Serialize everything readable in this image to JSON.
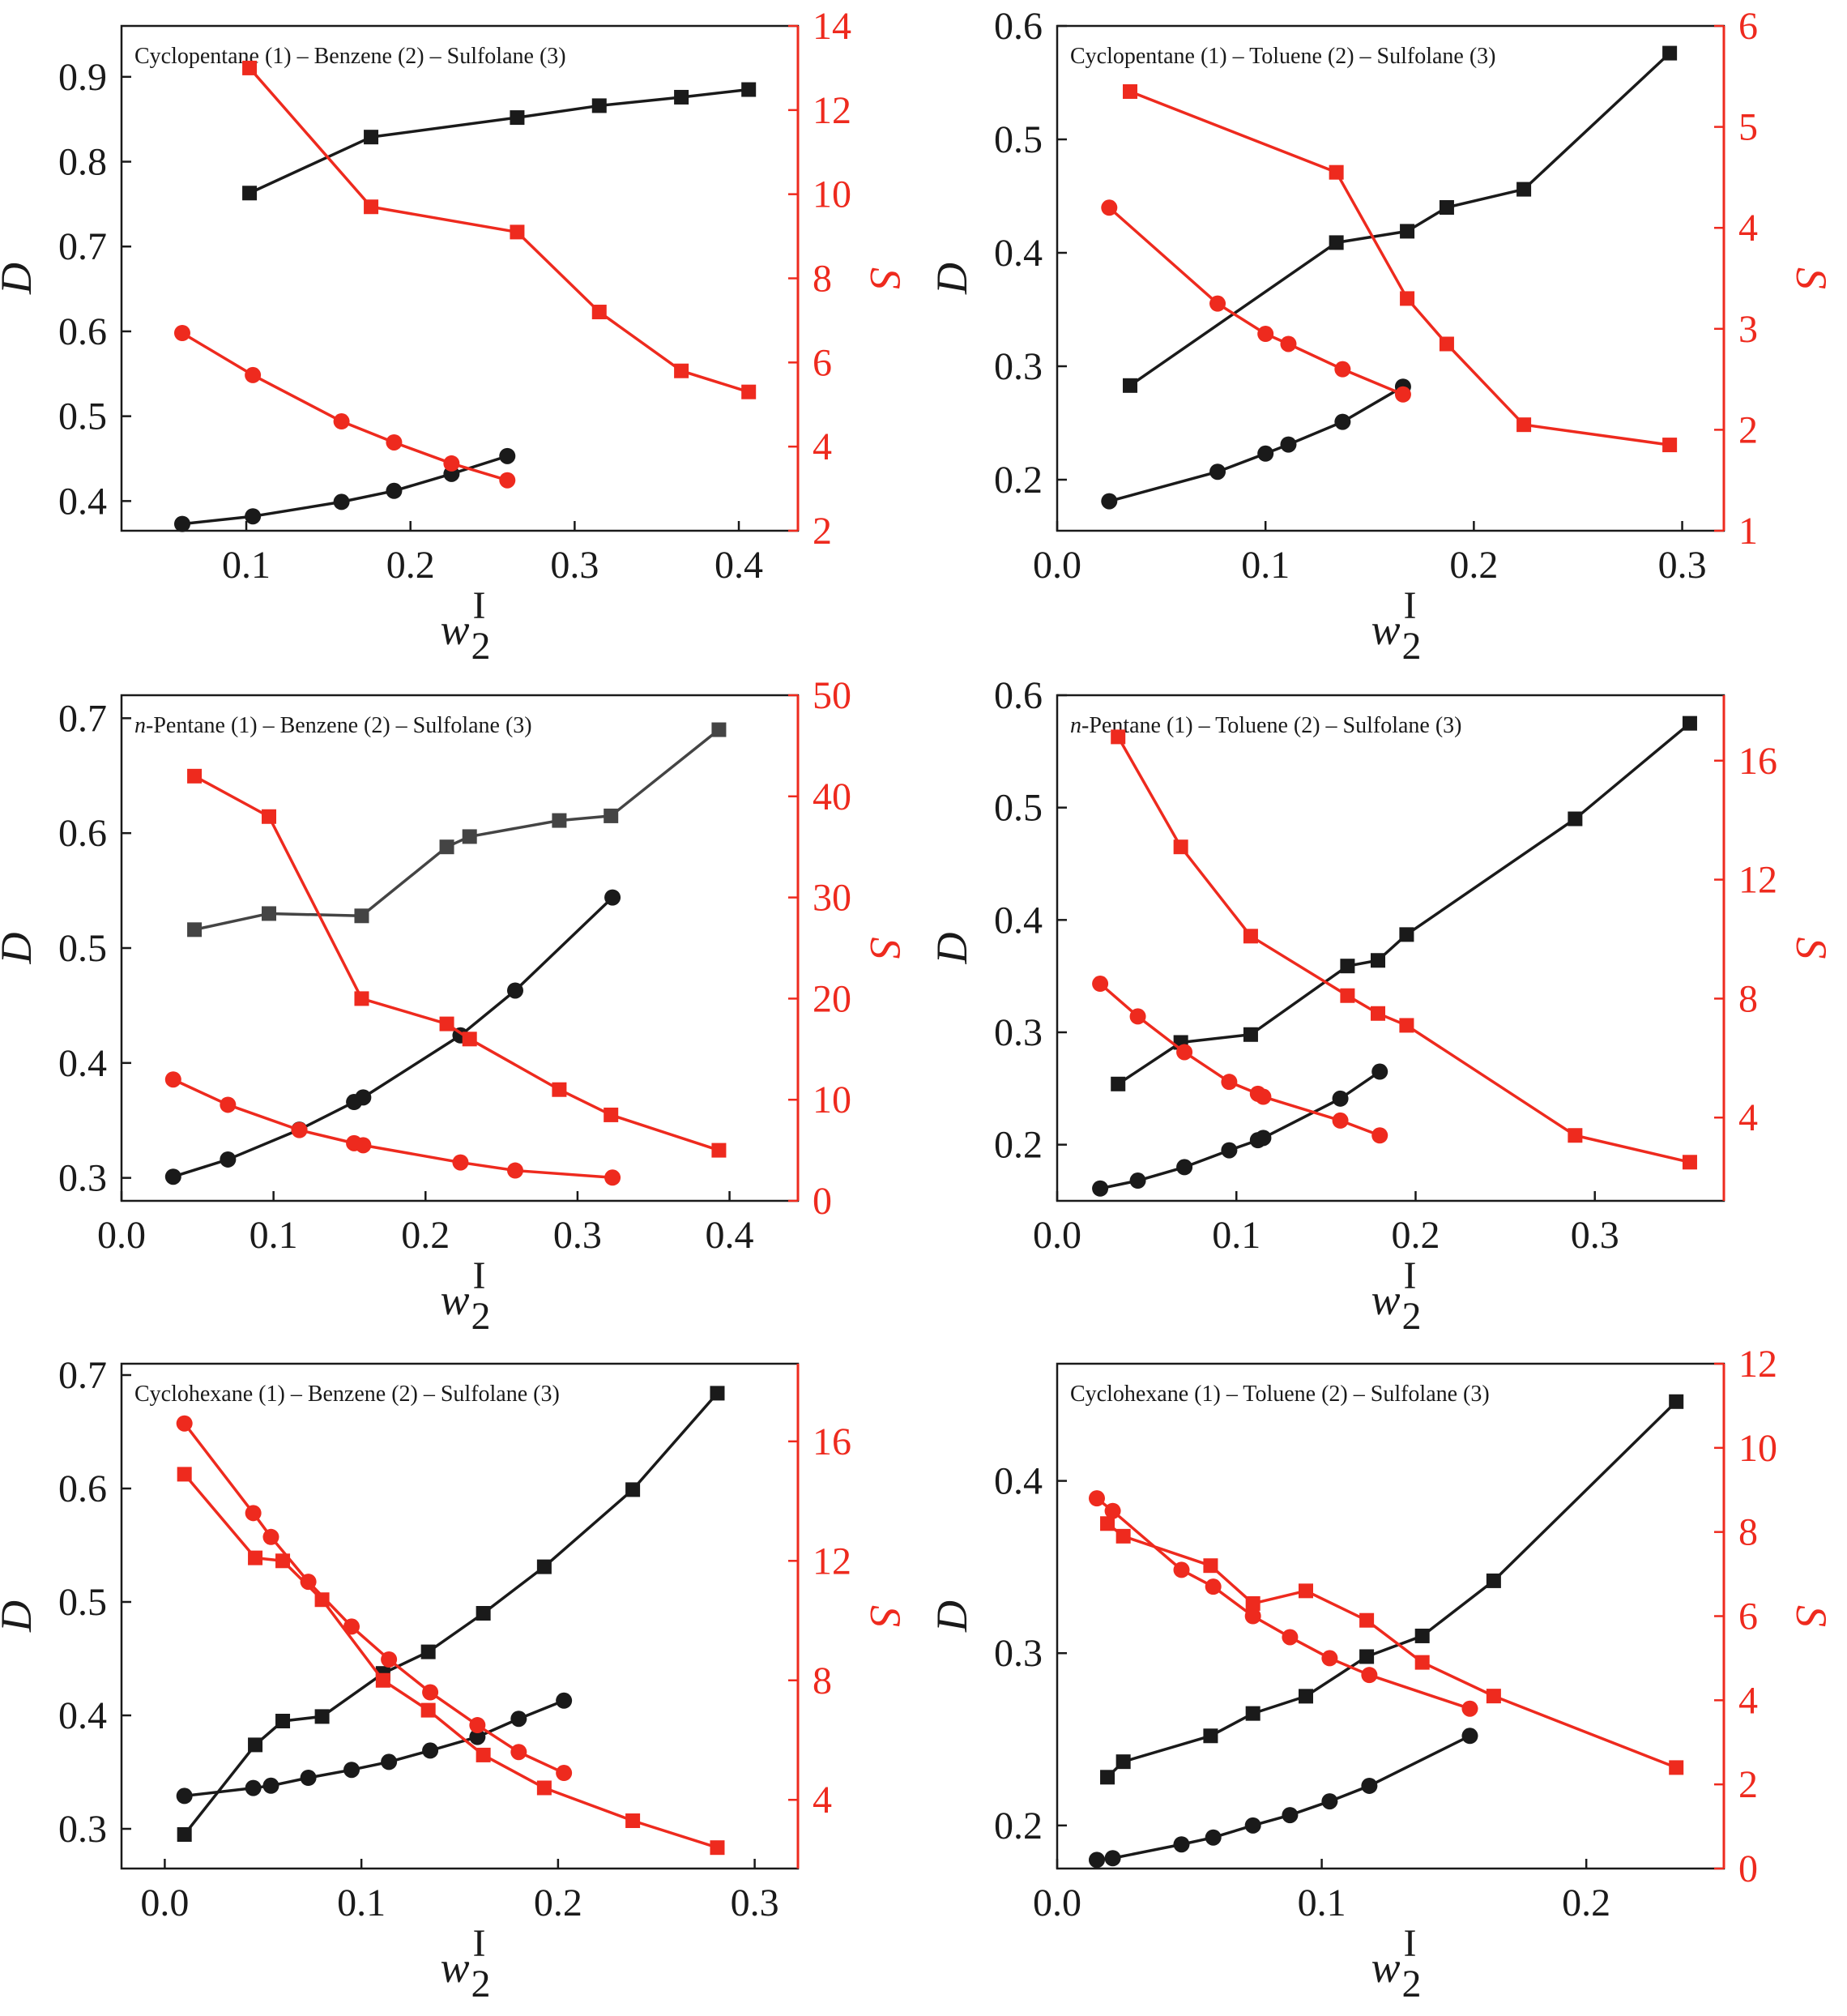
{
  "colors": {
    "black": "#1a1a1a",
    "red": "#ee2a1e",
    "grey": "#444444"
  },
  "chart_data": [
    {
      "type": "line",
      "title": "Cyclopentane (1) – Benzene (2) – Sulfolane (3)",
      "title_parts": [
        "Cyclopentane (1) – Benzene (2) – Sulfolane (3)"
      ],
      "xlabel": "w",
      "xlabel_sub": "2",
      "xlabel_sup": "I",
      "ylabel_left": "D",
      "ylabel_right": "S",
      "xlim": [
        0.024,
        0.436
      ],
      "ylim_left": [
        0.365,
        0.96
      ],
      "ylim_right": [
        2,
        14
      ],
      "xticks": [
        0.1,
        0.2,
        0.3,
        0.4
      ],
      "xtick_labels": [
        "0.1",
        "0.2",
        "0.3",
        "0.4"
      ],
      "yticks_left": [
        0.4,
        0.5,
        0.6,
        0.7,
        0.8,
        0.9
      ],
      "ytick_labels_left": [
        "0.4",
        "0.5",
        "0.6",
        "0.7",
        "0.8",
        "0.9"
      ],
      "yticks_right": [
        2,
        4,
        6,
        8,
        10,
        12,
        14
      ],
      "ytick_labels_right": [
        "2",
        "4",
        "6",
        "8",
        "10",
        "12",
        "14"
      ],
      "series": [
        {
          "name": "D squares",
          "axis": "left",
          "marker": "square",
          "color": "#1a1a1a",
          "x": [
            0.102,
            0.176,
            0.265,
            0.315,
            0.365,
            0.406
          ],
          "y": [
            0.763,
            0.829,
            0.852,
            0.866,
            0.876,
            0.885
          ]
        },
        {
          "name": "D circles",
          "axis": "left",
          "marker": "circle",
          "color": "#1a1a1a",
          "x": [
            0.061,
            0.104,
            0.158,
            0.19,
            0.225,
            0.259
          ],
          "y": [
            0.373,
            0.382,
            0.399,
            0.412,
            0.432,
            0.453
          ]
        },
        {
          "name": "S squares",
          "axis": "right",
          "marker": "square",
          "color": "#ee2a1e",
          "x": [
            0.102,
            0.176,
            0.265,
            0.315,
            0.365,
            0.406
          ],
          "y": [
            13.0,
            9.7,
            9.1,
            7.2,
            5.8,
            5.3
          ]
        },
        {
          "name": "S circles",
          "axis": "right",
          "marker": "circle",
          "color": "#ee2a1e",
          "x": [
            0.061,
            0.104,
            0.158,
            0.19,
            0.225,
            0.259
          ],
          "y": [
            6.7,
            5.7,
            4.6,
            4.1,
            3.6,
            3.2
          ]
        }
      ]
    },
    {
      "type": "line",
      "title": "Cyclopentane (1) – Toluene (2) – Sulfolane (3)",
      "title_parts": [
        "Cyclopentane (1) – Toluene (2) – Sulfolane (3)"
      ],
      "xlabel": "w",
      "xlabel_sub": "2",
      "xlabel_sup": "I",
      "ylabel_left": "D",
      "ylabel_right": "S",
      "xlim": [
        0.0,
        0.32
      ],
      "ylim_left": [
        0.155,
        0.6
      ],
      "ylim_right": [
        1,
        6
      ],
      "xticks": [
        0.0,
        0.1,
        0.2,
        0.3
      ],
      "xtick_labels": [
        "0.0",
        "0.1",
        "0.2",
        "0.3"
      ],
      "yticks_left": [
        0.2,
        0.3,
        0.4,
        0.5,
        0.6
      ],
      "ytick_labels_left": [
        "0.2",
        "0.3",
        "0.4",
        "0.5",
        "0.6"
      ],
      "yticks_right": [
        1,
        2,
        3,
        4,
        5,
        6
      ],
      "ytick_labels_right": [
        "1",
        "2",
        "3",
        "4",
        "5",
        "6"
      ],
      "series": [
        {
          "name": "D squares",
          "axis": "left",
          "marker": "square",
          "color": "#1a1a1a",
          "x": [
            0.035,
            0.134,
            0.168,
            0.187,
            0.224,
            0.294
          ],
          "y": [
            0.283,
            0.409,
            0.419,
            0.44,
            0.456,
            0.576
          ]
        },
        {
          "name": "D circles",
          "axis": "left",
          "marker": "circle",
          "color": "#1a1a1a",
          "x": [
            0.025,
            0.077,
            0.1,
            0.111,
            0.137,
            0.166
          ],
          "y": [
            0.181,
            0.207,
            0.223,
            0.231,
            0.251,
            0.282
          ]
        },
        {
          "name": "S squares",
          "axis": "right",
          "marker": "square",
          "color": "#ee2a1e",
          "x": [
            0.035,
            0.134,
            0.168,
            0.187,
            0.224,
            0.294
          ],
          "y": [
            5.35,
            4.55,
            3.3,
            2.85,
            2.05,
            1.85
          ]
        },
        {
          "name": "S circles",
          "axis": "right",
          "marker": "circle",
          "color": "#ee2a1e",
          "x": [
            0.025,
            0.077,
            0.1,
            0.111,
            0.137,
            0.166
          ],
          "y": [
            4.2,
            3.25,
            2.95,
            2.85,
            2.6,
            2.35
          ]
        }
      ]
    },
    {
      "type": "line",
      "title": "n-Pentane (1) – Benzene (2) – Sulfolane (3)",
      "title_parts": [
        "n",
        "-Pentane (1) – Benzene (2) – Sulfolane (3)"
      ],
      "xlabel": "w",
      "xlabel_sub": "2",
      "xlabel_sup": "I",
      "ylabel_left": "D",
      "ylabel_right": "S",
      "xlim": [
        0.0,
        0.445
      ],
      "ylim_left": [
        0.28,
        0.72
      ],
      "ylim_right": [
        0,
        50
      ],
      "xticks": [
        0.0,
        0.1,
        0.2,
        0.3,
        0.4
      ],
      "xtick_labels": [
        "0.0",
        "0.1",
        "0.2",
        "0.3",
        "0.4"
      ],
      "yticks_left": [
        0.3,
        0.4,
        0.5,
        0.6,
        0.7
      ],
      "ytick_labels_left": [
        "0.3",
        "0.4",
        "0.5",
        "0.6",
        "0.7"
      ],
      "yticks_right": [
        0,
        10,
        20,
        30,
        40,
        50
      ],
      "ytick_labels_right": [
        "0",
        "10",
        "20",
        "30",
        "40",
        "50"
      ],
      "series": [
        {
          "name": "D squares",
          "axis": "left",
          "marker": "square",
          "color": "#444444",
          "x": [
            0.048,
            0.097,
            0.158,
            0.214,
            0.229,
            0.288,
            0.322,
            0.393
          ],
          "y": [
            0.516,
            0.53,
            0.528,
            0.588,
            0.597,
            0.611,
            0.615,
            0.69
          ]
        },
        {
          "name": "D circles",
          "axis": "left",
          "marker": "circle",
          "color": "#1a1a1a",
          "x": [
            0.034,
            0.07,
            0.117,
            0.153,
            0.159,
            0.223,
            0.259,
            0.323
          ],
          "y": [
            0.301,
            0.316,
            0.342,
            0.366,
            0.37,
            0.424,
            0.463,
            0.544
          ]
        },
        {
          "name": "S squares",
          "axis": "right",
          "marker": "square",
          "color": "#ee2a1e",
          "x": [
            0.048,
            0.097,
            0.158,
            0.214,
            0.229,
            0.288,
            0.322,
            0.393
          ],
          "y": [
            42,
            38,
            20,
            17.5,
            16,
            11,
            8.5,
            5
          ]
        },
        {
          "name": "S circles",
          "axis": "right",
          "marker": "circle",
          "color": "#ee2a1e",
          "x": [
            0.034,
            0.07,
            0.117,
            0.153,
            0.159,
            0.223,
            0.259,
            0.323
          ],
          "y": [
            12,
            9.5,
            7,
            5.7,
            5.5,
            3.8,
            3,
            2.3
          ]
        }
      ]
    },
    {
      "type": "line",
      "title": "n-Pentane (1) – Toluene (2) – Sulfolane (3)",
      "title_parts": [
        "n",
        "-Pentane (1) – Toluene (2) – Sulfolane (3)"
      ],
      "xlabel": "w",
      "xlabel_sub": "2",
      "xlabel_sup": "I",
      "ylabel_left": "D",
      "ylabel_right": "S",
      "xlim": [
        0.0,
        0.372
      ],
      "ylim_left": [
        0.15,
        0.6
      ],
      "ylim_right": [
        1.2,
        18.2
      ],
      "xticks": [
        0.0,
        0.1,
        0.2,
        0.3
      ],
      "xtick_labels": [
        "0.0",
        "0.1",
        "0.2",
        "0.3"
      ],
      "yticks_left": [
        0.2,
        0.3,
        0.4,
        0.5,
        0.6
      ],
      "ytick_labels_left": [
        "0.2",
        "0.3",
        "0.4",
        "0.5",
        "0.6"
      ],
      "yticks_right": [
        4,
        8,
        12,
        16
      ],
      "ytick_labels_right": [
        "4",
        "8",
        "12",
        "16"
      ],
      "series": [
        {
          "name": "D squares",
          "axis": "left",
          "marker": "square",
          "color": "#1a1a1a",
          "x": [
            0.034,
            0.069,
            0.108,
            0.162,
            0.179,
            0.195,
            0.289,
            0.353
          ],
          "y": [
            0.254,
            0.291,
            0.298,
            0.359,
            0.364,
            0.387,
            0.49,
            0.575
          ]
        },
        {
          "name": "D circles",
          "axis": "left",
          "marker": "circle",
          "color": "#1a1a1a",
          "x": [
            0.024,
            0.045,
            0.071,
            0.096,
            0.112,
            0.115,
            0.158,
            0.18
          ],
          "y": [
            0.161,
            0.168,
            0.18,
            0.195,
            0.204,
            0.206,
            0.241,
            0.265
          ]
        },
        {
          "name": "S squares",
          "axis": "right",
          "marker": "square",
          "color": "#ee2a1e",
          "x": [
            0.034,
            0.069,
            0.108,
            0.162,
            0.179,
            0.195,
            0.289,
            0.353
          ],
          "y": [
            16.8,
            13.1,
            10.1,
            8.1,
            7.5,
            7.1,
            3.4,
            2.5
          ]
        },
        {
          "name": "S circles",
          "axis": "right",
          "marker": "circle",
          "color": "#ee2a1e",
          "x": [
            0.024,
            0.045,
            0.071,
            0.096,
            0.112,
            0.115,
            0.158,
            0.18
          ],
          "y": [
            8.5,
            7.4,
            6.2,
            5.2,
            4.8,
            4.7,
            3.9,
            3.4
          ]
        }
      ]
    },
    {
      "type": "line",
      "title": "Cyclohexane (1) – Benzene (2) – Sulfolane (3)",
      "title_parts": [
        "Cyclohexane (1) – Benzene (2) – Sulfolane (3)"
      ],
      "xlabel": "w",
      "xlabel_sub": "2",
      "xlabel_sup": "I",
      "ylabel_left": "D",
      "ylabel_right": "S",
      "xlim": [
        -0.022,
        0.322
      ],
      "ylim_left": [
        0.265,
        0.71
      ],
      "ylim_right": [
        1.7,
        18.6
      ],
      "xticks": [
        0.0,
        0.1,
        0.2,
        0.3
      ],
      "xtick_labels": [
        "0.0",
        "0.1",
        "0.2",
        "0.3"
      ],
      "yticks_left": [
        0.3,
        0.4,
        0.5,
        0.6,
        0.7
      ],
      "ytick_labels_left": [
        "0.3",
        "0.4",
        "0.5",
        "0.6",
        "0.7"
      ],
      "yticks_right": [
        4,
        8,
        12,
        16
      ],
      "ytick_labels_right": [
        "4",
        "8",
        "12",
        "16"
      ],
      "series": [
        {
          "name": "D squares",
          "axis": "left",
          "marker": "square",
          "color": "#1a1a1a",
          "x": [
            0.01,
            0.046,
            0.06,
            0.08,
            0.111,
            0.134,
            0.162,
            0.193,
            0.238,
            0.281
          ],
          "y": [
            0.295,
            0.374,
            0.395,
            0.399,
            0.437,
            0.456,
            0.49,
            0.531,
            0.599,
            0.684
          ]
        },
        {
          "name": "D circles",
          "axis": "left",
          "marker": "circle",
          "color": "#1a1a1a",
          "x": [
            0.01,
            0.045,
            0.054,
            0.073,
            0.095,
            0.114,
            0.135,
            0.159,
            0.18,
            0.203
          ],
          "y": [
            0.329,
            0.336,
            0.338,
            0.345,
            0.352,
            0.359,
            0.369,
            0.381,
            0.397,
            0.413
          ]
        },
        {
          "name": "S squares",
          "axis": "right",
          "marker": "square",
          "color": "#ee2a1e",
          "x": [
            0.01,
            0.046,
            0.06,
            0.08,
            0.111,
            0.134,
            0.162,
            0.193,
            0.238,
            0.281
          ],
          "y": [
            14.9,
            12.1,
            12.0,
            10.7,
            8.0,
            7.0,
            5.5,
            4.4,
            3.3,
            2.4
          ]
        },
        {
          "name": "S circles",
          "axis": "right",
          "marker": "circle",
          "color": "#ee2a1e",
          "x": [
            0.01,
            0.045,
            0.054,
            0.073,
            0.095,
            0.114,
            0.135,
            0.159,
            0.18,
            0.203
          ],
          "y": [
            16.6,
            13.6,
            12.8,
            11.3,
            9.8,
            8.7,
            7.6,
            6.5,
            5.6,
            4.9
          ]
        }
      ]
    },
    {
      "type": "line",
      "title": "Cyclohexane (1) – Toluene (2) – Sulfolane (3)",
      "title_parts": [
        "Cyclohexane (1) – Toluene (2) – Sulfolane (3)"
      ],
      "xlabel": "w",
      "xlabel_sub": "2",
      "xlabel_sup": "I",
      "ylabel_left": "D",
      "ylabel_right": "S",
      "xlim": [
        0.0,
        0.252
      ],
      "ylim_left": [
        0.175,
        0.468
      ],
      "ylim_right": [
        0,
        12
      ],
      "xticks": [
        0.0,
        0.1,
        0.2
      ],
      "xtick_labels": [
        "0.0",
        "0.1",
        "0.2"
      ],
      "yticks_left": [
        0.2,
        0.3,
        0.4
      ],
      "ytick_labels_left": [
        "0.2",
        "0.3",
        "0.4"
      ],
      "yticks_right": [
        0,
        2,
        4,
        6,
        8,
        10,
        12
      ],
      "ytick_labels_right": [
        "0",
        "2",
        "4",
        "6",
        "8",
        "10",
        "12"
      ],
      "series": [
        {
          "name": "D squares",
          "axis": "left",
          "marker": "square",
          "color": "#1a1a1a",
          "x": [
            0.019,
            0.025,
            0.058,
            0.074,
            0.094,
            0.117,
            0.138,
            0.165,
            0.234
          ],
          "y": [
            0.228,
            0.237,
            0.252,
            0.265,
            0.275,
            0.298,
            0.31,
            0.342,
            0.446
          ]
        },
        {
          "name": "D circles",
          "axis": "left",
          "marker": "circle",
          "color": "#1a1a1a",
          "x": [
            0.015,
            0.021,
            0.047,
            0.059,
            0.074,
            0.088,
            0.103,
            0.118,
            0.156
          ],
          "y": [
            0.18,
            0.181,
            0.189,
            0.193,
            0.2,
            0.206,
            0.214,
            0.223,
            0.252
          ]
        },
        {
          "name": "S squares",
          "axis": "right",
          "marker": "square",
          "color": "#ee2a1e",
          "x": [
            0.019,
            0.025,
            0.058,
            0.074,
            0.094,
            0.117,
            0.138,
            0.165,
            0.234
          ],
          "y": [
            8.2,
            7.9,
            7.2,
            6.3,
            6.6,
            5.9,
            4.9,
            4.1,
            2.4
          ]
        },
        {
          "name": "S circles",
          "axis": "right",
          "marker": "circle",
          "color": "#ee2a1e",
          "x": [
            0.015,
            0.021,
            0.047,
            0.059,
            0.074,
            0.088,
            0.103,
            0.118,
            0.156
          ],
          "y": [
            8.8,
            8.5,
            7.1,
            6.7,
            6.0,
            5.5,
            5.0,
            4.6,
            3.8
          ]
        }
      ]
    }
  ]
}
